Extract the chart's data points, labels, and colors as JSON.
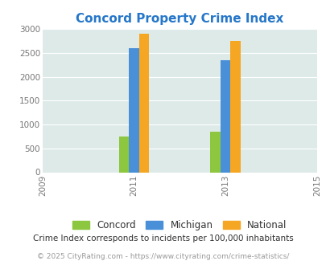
{
  "title": "Concord Property Crime Index",
  "title_color": "#2677c9",
  "years": [
    2011,
    2013
  ],
  "concord": [
    750,
    850
  ],
  "michigan": [
    2600,
    2350
  ],
  "national": [
    2900,
    2750
  ],
  "concord_color": "#8dc63f",
  "michigan_color": "#4a90d9",
  "national_color": "#f5a623",
  "bg_color": "#deeae8",
  "xlim": [
    2009,
    2015
  ],
  "ylim": [
    0,
    3000
  ],
  "yticks": [
    0,
    500,
    1000,
    1500,
    2000,
    2500,
    3000
  ],
  "xticks": [
    2009,
    2011,
    2013,
    2015
  ],
  "bar_width": 0.22,
  "legend_labels": [
    "Concord",
    "Michigan",
    "National"
  ],
  "footnote1": "Crime Index corresponds to incidents per 100,000 inhabitants",
  "footnote2": "© 2025 CityRating.com - https://www.cityrating.com/crime-statistics/",
  "footnote1_color": "#333333",
  "footnote2_color": "#999999"
}
